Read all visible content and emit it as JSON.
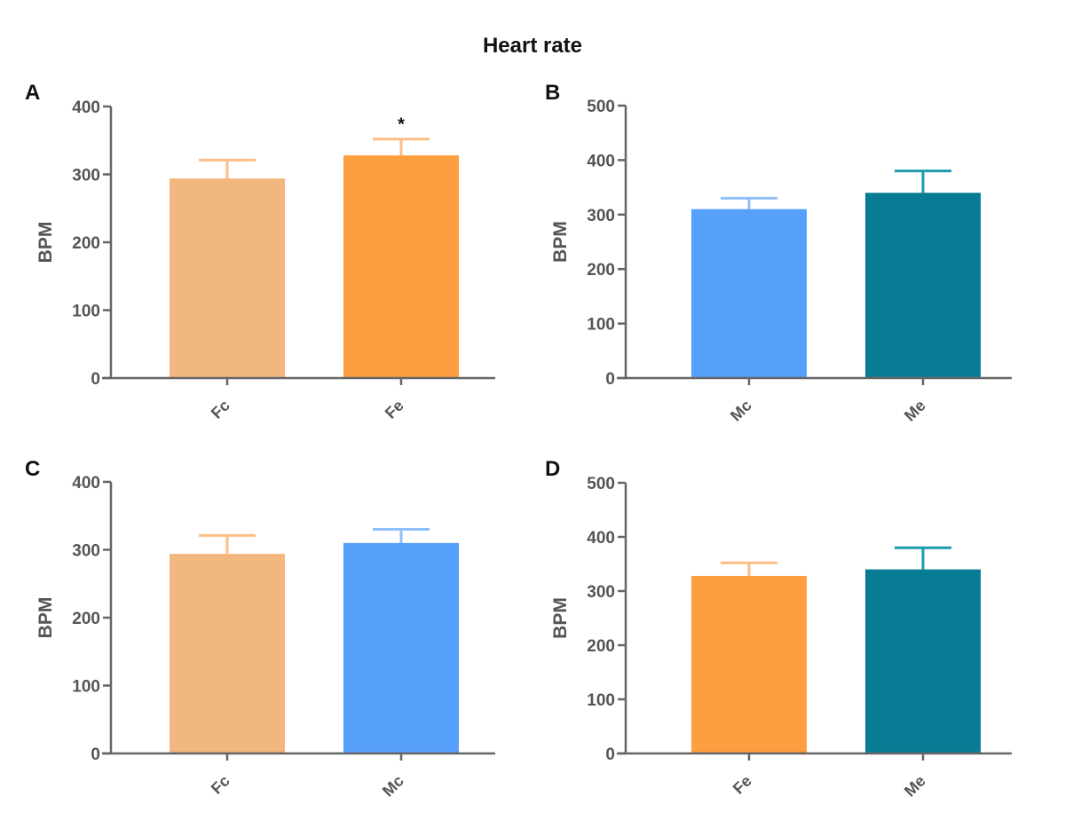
{
  "chart_data": {
    "title": "Heart rate",
    "panels": [
      {
        "label": "A",
        "type": "bar",
        "ylabel": "BPM",
        "ylim": [
          0,
          400
        ],
        "yticks": [
          0,
          100,
          200,
          300,
          400
        ],
        "categories": [
          "Fc",
          "Fe"
        ],
        "values": [
          294,
          328
        ],
        "error_upper": [
          321,
          352
        ],
        "colors": [
          "#F2B77F",
          "#FD9F40"
        ],
        "error_colors": [
          "#FDBE86",
          "#FDBE86"
        ],
        "annotations": [
          {
            "category": "Fe",
            "text": "*"
          }
        ]
      },
      {
        "label": "B",
        "type": "bar",
        "ylabel": "BPM",
        "ylim": [
          0,
          500
        ],
        "yticks": [
          0,
          100,
          200,
          300,
          400,
          500
        ],
        "categories": [
          "Mc",
          "Me"
        ],
        "values": [
          310,
          340
        ],
        "error_upper": [
          330,
          380
        ],
        "colors": [
          "#569FFB",
          "#087C95"
        ],
        "error_colors": [
          "#8EC0FB",
          "#1E9BB0"
        ],
        "annotations": []
      },
      {
        "label": "C",
        "type": "bar",
        "ylabel": "BPM",
        "ylim": [
          0,
          400
        ],
        "yticks": [
          0,
          100,
          200,
          300,
          400
        ],
        "categories": [
          "Fc",
          "Mc"
        ],
        "values": [
          294,
          310
        ],
        "error_upper": [
          321,
          330
        ],
        "colors": [
          "#F2B77F",
          "#569FFB"
        ],
        "error_colors": [
          "#FDBE86",
          "#8EC0FB"
        ],
        "annotations": []
      },
      {
        "label": "D",
        "type": "bar",
        "ylabel": "BPM",
        "ylim": [
          0,
          500
        ],
        "yticks": [
          0,
          100,
          200,
          300,
          400,
          500
        ],
        "categories": [
          "Fe",
          "Me"
        ],
        "values": [
          328,
          340
        ],
        "error_upper": [
          352,
          380
        ],
        "colors": [
          "#FD9F40",
          "#087C95"
        ],
        "error_colors": [
          "#FDBE86",
          "#1E9BB0"
        ],
        "annotations": []
      }
    ]
  }
}
